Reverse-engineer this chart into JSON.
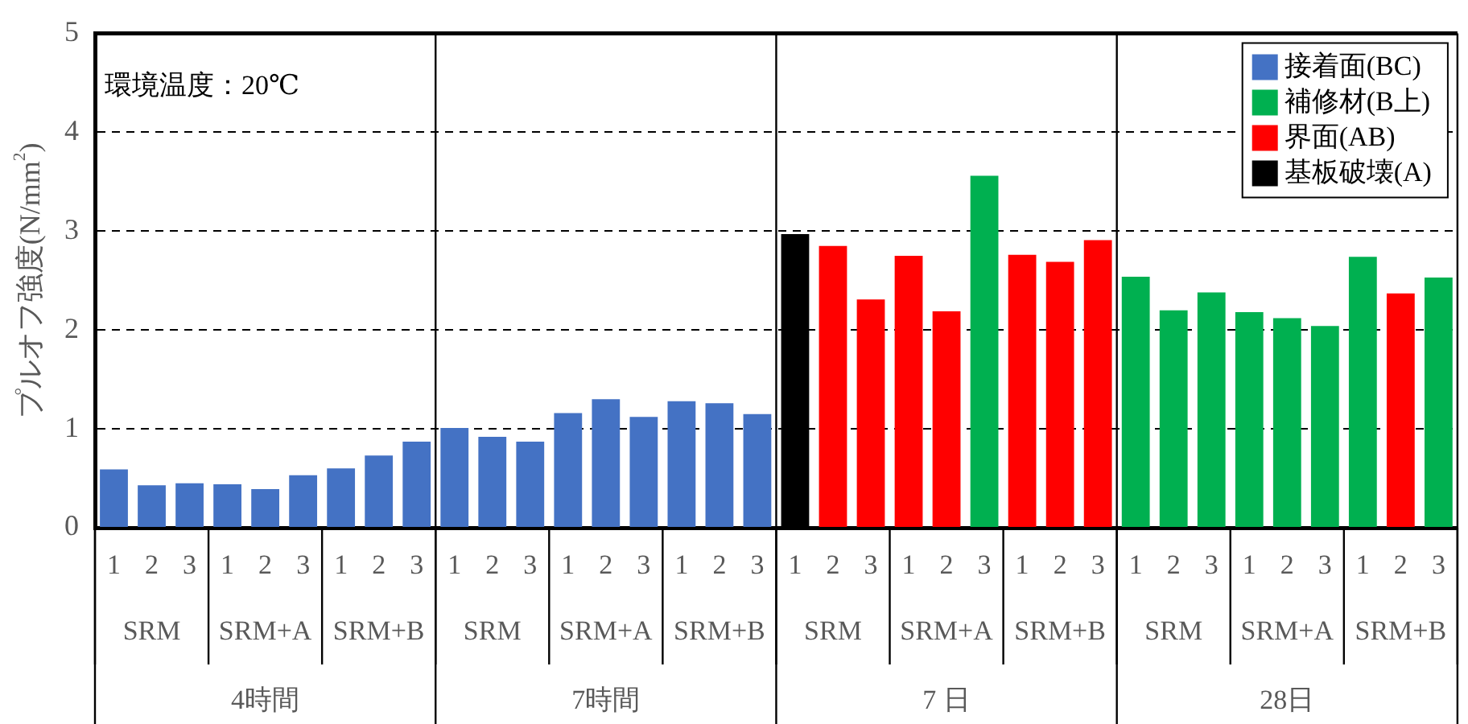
{
  "chart_data": {
    "type": "bar",
    "ylabel": "プルオフ強度(N/mm$^{2}$)",
    "categories": [
      "1",
      "2",
      "3",
      "1",
      "2",
      "3",
      "1",
      "2",
      "3",
      "1",
      "2",
      "3",
      "1",
      "2",
      "3",
      "1",
      "2",
      "3",
      "1",
      "2",
      "3",
      "1",
      "2",
      "3",
      "1",
      "2",
      "3",
      "1",
      "2",
      "3",
      "1",
      "2",
      "3",
      "1",
      "2",
      "3"
    ],
    "series": [
      {
        "name": "接着面(BC)",
        "color": "#4472c4",
        "values": [
          0.59,
          0.43,
          0.45,
          0.44,
          0.39,
          0.53,
          0.6,
          0.73,
          0.87,
          1.01,
          0.92,
          0.87,
          1.16,
          1.3,
          1.12,
          1.28,
          1.26,
          1.15,
          null,
          null,
          null,
          null,
          null,
          null,
          null,
          null,
          null,
          null,
          null,
          null,
          null,
          null,
          null,
          null,
          null,
          null
        ]
      },
      {
        "name": "補修材(B上)",
        "color": "#00b050",
        "values": [
          null,
          null,
          null,
          null,
          null,
          null,
          null,
          null,
          null,
          null,
          null,
          null,
          null,
          null,
          null,
          null,
          null,
          null,
          null,
          null,
          null,
          null,
          null,
          3.56,
          null,
          null,
          null,
          2.54,
          2.2,
          2.38,
          2.18,
          2.12,
          2.04,
          2.74,
          null,
          2.53
        ]
      },
      {
        "name": "界面(AB)",
        "color": "#ff0000",
        "values": [
          null,
          null,
          null,
          null,
          null,
          null,
          null,
          null,
          null,
          null,
          null,
          null,
          null,
          null,
          null,
          null,
          null,
          null,
          null,
          2.85,
          2.31,
          2.75,
          2.19,
          null,
          2.76,
          2.69,
          2.91,
          null,
          null,
          null,
          null,
          null,
          null,
          null,
          2.37,
          null
        ]
      },
      {
        "name": "基板破壊(A)",
        "color": "#000000",
        "values": [
          null,
          null,
          null,
          null,
          null,
          null,
          null,
          null,
          null,
          null,
          null,
          null,
          null,
          null,
          null,
          null,
          null,
          null,
          2.97,
          null,
          null,
          null,
          null,
          null,
          null,
          null,
          null,
          null,
          null,
          null,
          null,
          null,
          null,
          null,
          null,
          null
        ]
      }
    ],
    "stacked": true,
    "ylim": [
      0,
      5
    ],
    "yticks": [
      0,
      1,
      2,
      3,
      4,
      5
    ],
    "grid": "y",
    "legend": "top right",
    "annotations": [
      "環境温度：20℃",
      "SRM",
      "SRM+A",
      "SRM+B",
      "SRM",
      "SRM+A",
      "SRM+B",
      "SRM",
      "SRM+A",
      "SRM+B",
      "SRM",
      "SRM+A",
      "SRM+B",
      "4時間",
      "7時間",
      "7 日",
      "28日"
    ]
  }
}
